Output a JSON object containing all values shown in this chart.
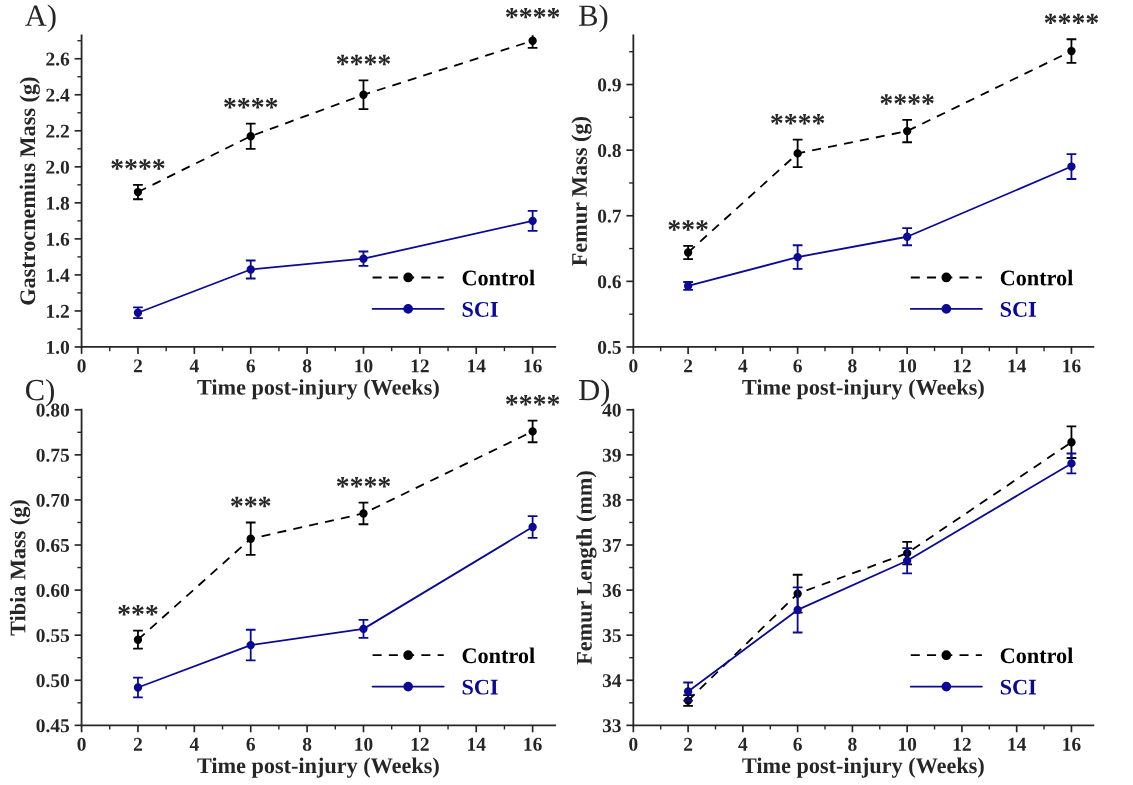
{
  "chart_data": [
    {
      "type": "line",
      "title": "A)",
      "xlabel": "Time post-injury (Weeks)",
      "ylabel": "Gastrocnemius Mass (g)",
      "x": [
        2,
        6,
        10,
        16
      ],
      "xlim": [
        0,
        16.8
      ],
      "xticks": [
        0,
        2,
        4,
        6,
        8,
        10,
        12,
        14,
        16
      ],
      "ylim": [
        1.0,
        2.73
      ],
      "yticks": [
        {
          "value": 1.0,
          "label": "1.0"
        },
        1.2,
        1.4,
        1.6,
        1.8,
        {
          "value": 2.0,
          "label": "2.0"
        },
        2.2,
        2.4,
        2.6
      ],
      "grid": false,
      "legend": "right",
      "marker": "circle",
      "series": [
        {
          "name": "Control",
          "color": "#000000",
          "line_style": "dashed",
          "values": [
            1.86,
            2.17,
            2.4,
            2.7
          ],
          "errors": [
            0.04,
            0.07,
            0.08,
            0.04
          ]
        },
        {
          "name": "SCI",
          "color": "#0a0a96",
          "line_style": "solid",
          "values": [
            1.19,
            1.43,
            1.49,
            1.7
          ],
          "errors": [
            0.03,
            0.05,
            0.04,
            0.055
          ]
        }
      ],
      "annotations": [
        {
          "text": "****",
          "x": 2,
          "y": 1.86
        },
        {
          "text": "****",
          "x": 6,
          "y": 2.17
        },
        {
          "text": "****",
          "x": 10,
          "y": 2.4
        },
        {
          "text": "****",
          "x": 16,
          "y": 2.7
        }
      ]
    },
    {
      "type": "line",
      "title": "B)",
      "xlabel": "Time post-injury (Weeks)",
      "ylabel": "Femur Mass (g)",
      "x": [
        2,
        6,
        10,
        16
      ],
      "xlim": [
        0,
        16.8
      ],
      "xticks": [
        0,
        2,
        4,
        6,
        8,
        10,
        12,
        14,
        16
      ],
      "ylim": [
        0.5,
        0.975
      ],
      "yticks": [
        0.5,
        0.6,
        0.7,
        0.8,
        0.9
      ],
      "grid": false,
      "legend": "right",
      "marker": "circle",
      "series": [
        {
          "name": "Control",
          "color": "#000000",
          "line_style": "dashed",
          "values": [
            0.644,
            0.795,
            0.829,
            0.951
          ],
          "errors": [
            0.01,
            0.021,
            0.017,
            0.018
          ]
        },
        {
          "name": "SCI",
          "color": "#0a0a96",
          "line_style": "solid",
          "values": [
            0.593,
            0.637,
            0.668,
            0.775
          ],
          "errors": [
            0.006,
            0.018,
            0.013,
            0.019
          ]
        }
      ],
      "annotations": [
        {
          "text": "***",
          "x": 2,
          "y": 0.644
        },
        {
          "text": "****",
          "x": 6,
          "y": 0.795
        },
        {
          "text": "****",
          "x": 10,
          "y": 0.829
        },
        {
          "text": "****",
          "x": 16,
          "y": 0.951
        }
      ]
    },
    {
      "type": "line",
      "title": "C)",
      "xlabel": "Time post-injury (Weeks)",
      "ylabel": "Tibia Mass (g)",
      "x": [
        2,
        6,
        10,
        16
      ],
      "xlim": [
        0,
        16.8
      ],
      "xticks": [
        0,
        2,
        4,
        6,
        8,
        10,
        12,
        14,
        16
      ],
      "ylim": [
        0.45,
        0.8
      ],
      "yticks": [
        {
          "value": 0.45,
          "label": "0.45"
        },
        {
          "value": 0.5,
          "label": "0.50"
        },
        {
          "value": 0.55,
          "label": "0.55"
        },
        {
          "value": 0.6,
          "label": "0.60"
        },
        {
          "value": 0.65,
          "label": "0.65"
        },
        {
          "value": 0.7,
          "label": "0.70"
        },
        {
          "value": 0.75,
          "label": "0.75"
        },
        {
          "value": 0.8,
          "label": "0.80"
        }
      ],
      "grid": false,
      "legend": "right",
      "marker": "circle",
      "series": [
        {
          "name": "Control",
          "color": "#000000",
          "line_style": "dashed",
          "values": [
            0.545,
            0.657,
            0.685,
            0.776
          ],
          "errors": [
            0.01,
            0.018,
            0.012,
            0.012
          ]
        },
        {
          "name": "SCI",
          "color": "#0a0a96",
          "line_style": "solid",
          "values": [
            0.492,
            0.539,
            0.557,
            0.67
          ],
          "errors": [
            0.011,
            0.017,
            0.01,
            0.012
          ]
        }
      ],
      "annotations": [
        {
          "text": "***",
          "x": 2,
          "y": 0.545
        },
        {
          "text": "***",
          "x": 6,
          "y": 0.657
        },
        {
          "text": "****",
          "x": 10,
          "y": 0.685
        },
        {
          "text": "****",
          "x": 16,
          "y": 0.776
        }
      ]
    },
    {
      "type": "line",
      "title": "D)",
      "xlabel": "Time post-injury (Weeks)",
      "ylabel": "Femur Length (mm)",
      "x": [
        2,
        6,
        10,
        16
      ],
      "xlim": [
        0,
        16.8
      ],
      "xticks": [
        0,
        2,
        4,
        6,
        8,
        10,
        12,
        14,
        16
      ],
      "ylim": [
        33,
        40
      ],
      "yticks": [
        33,
        34,
        35,
        36,
        37,
        38,
        39,
        40
      ],
      "grid": false,
      "legend": "right",
      "marker": "circle",
      "series": [
        {
          "name": "Control",
          "color": "#000000",
          "line_style": "dashed",
          "values": [
            33.55,
            35.92,
            36.82,
            39.28
          ],
          "errors": [
            0.12,
            0.42,
            0.25,
            0.35
          ]
        },
        {
          "name": "SCI",
          "color": "#0a0a96",
          "line_style": "solid",
          "values": [
            33.75,
            35.56,
            36.65,
            38.81
          ],
          "errors": [
            0.2,
            0.5,
            0.28,
            0.22
          ]
        }
      ]
    }
  ]
}
